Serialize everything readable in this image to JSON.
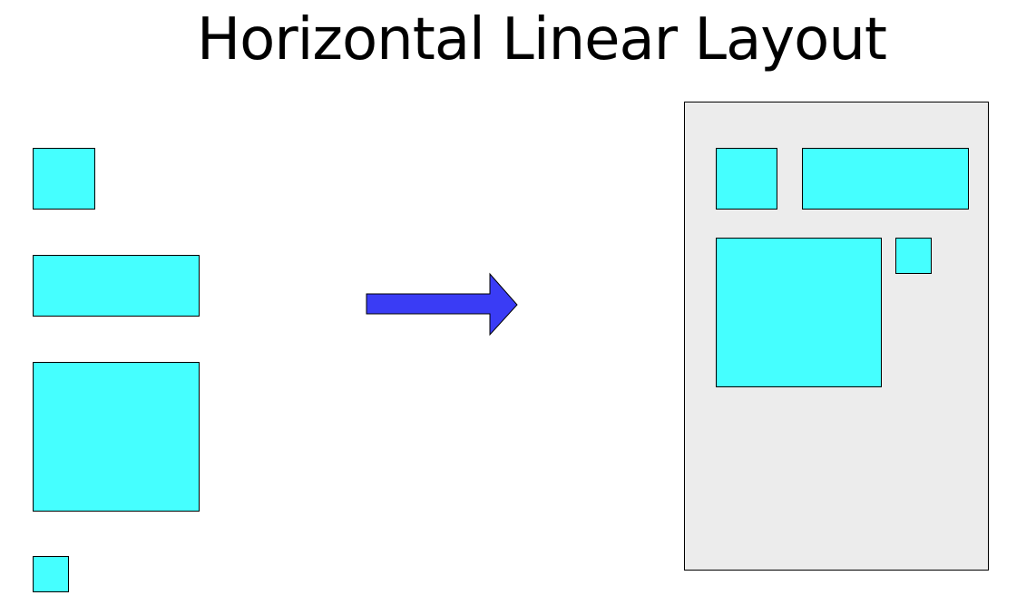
{
  "title": "Horizontal Linear Layout",
  "colors": {
    "widget_fill": "#45ffff",
    "container_fill": "#ececec",
    "arrow_fill": "#3a3cf5",
    "stroke": "#000000"
  },
  "icons": {
    "arrow": "right-arrow-icon"
  }
}
